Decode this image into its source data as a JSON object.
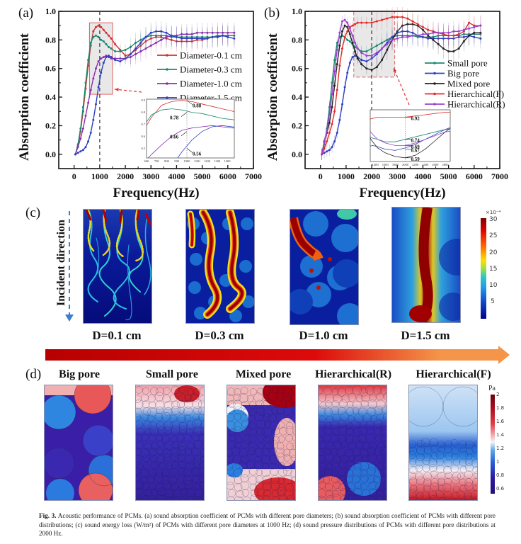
{
  "figure": {
    "caption_label": "Fig. 3.",
    "caption_text": "Acoustic performance of PCMs. (a) sound absorption coefficient of PCMs with different pore diameters; (b) sound absorption coefficient of PCMs with different pore distributions; (c) sound energy loss (W/m²) of PCMs with different pore diameters at 1000 Hz; (d) sound pressure distributions of PCMs with different pore distributions at 2000 Hz."
  },
  "chart_data": [
    {
      "panel": "(a)",
      "type": "line",
      "title": "",
      "xlabel": "Frequency(Hz)",
      "ylabel": "Absorption coefficient",
      "xlim": [
        -600,
        7000
      ],
      "ylim": [
        -0.1,
        1.0
      ],
      "xticks": [
        "0",
        "1000",
        "2000",
        "3000",
        "4000",
        "5000",
        "6000",
        "7000"
      ],
      "yticks": [
        "0.0",
        "0.2",
        "0.4",
        "0.6",
        "0.8",
        "1.0"
      ],
      "grid": false,
      "legend_position": "center-right",
      "reference_line_x": 1000,
      "highlight_box": {
        "x": [
          600,
          1500
        ],
        "y": [
          0.42,
          0.92
        ]
      },
      "x": [
        50,
        150,
        250,
        350,
        450,
        550,
        650,
        750,
        850,
        950,
        1050,
        1150,
        1250,
        1350,
        1450,
        1600,
        1800,
        2000,
        2200,
        2400,
        2600,
        2800,
        3000,
        3200,
        3400,
        3600,
        3800,
        4000,
        4200,
        4400,
        4600,
        4800,
        5000,
        5200,
        5400,
        5600,
        5800,
        6000,
        6250
      ],
      "series": [
        {
          "name": "Diameter-0.1 cm",
          "color": "#d23030",
          "values": [
            0.0,
            0.06,
            0.16,
            0.3,
            0.46,
            0.62,
            0.76,
            0.86,
            0.89,
            0.9,
            0.89,
            0.87,
            0.85,
            0.83,
            0.81,
            0.77,
            0.73,
            0.69,
            0.7,
            0.73,
            0.76,
            0.79,
            0.81,
            0.82,
            0.82,
            0.81,
            0.8,
            0.79,
            0.79,
            0.79,
            0.79,
            0.8,
            0.8,
            0.81,
            0.82,
            0.82,
            0.83,
            0.83,
            0.83
          ]
        },
        {
          "name": "Diameter-0.3 cm",
          "color": "#1a8a6e",
          "values": [
            0.0,
            0.07,
            0.18,
            0.33,
            0.5,
            0.66,
            0.78,
            0.82,
            0.83,
            0.82,
            0.8,
            0.79,
            0.77,
            0.75,
            0.74,
            0.72,
            0.72,
            0.73,
            0.75,
            0.78,
            0.8,
            0.82,
            0.83,
            0.83,
            0.83,
            0.83,
            0.82,
            0.82,
            0.82,
            0.82,
            0.82,
            0.82,
            0.82,
            0.82,
            0.82,
            0.83,
            0.83,
            0.83,
            0.83
          ]
        },
        {
          "name": "Diameter-1.0 cm",
          "color": "#8a2fb0",
          "values": [
            0.0,
            0.05,
            0.11,
            0.18,
            0.27,
            0.36,
            0.45,
            0.53,
            0.6,
            0.65,
            0.67,
            0.68,
            0.69,
            0.68,
            0.67,
            0.67,
            0.67,
            0.67,
            0.68,
            0.7,
            0.72,
            0.74,
            0.76,
            0.78,
            0.8,
            0.82,
            0.83,
            0.83,
            0.84,
            0.84,
            0.84,
            0.85,
            0.85,
            0.85,
            0.85,
            0.85,
            0.85,
            0.85,
            0.85
          ]
        },
        {
          "name": "Diameter-1.5 cm",
          "color": "#2e3fc0",
          "values": [
            0.0,
            0.01,
            0.02,
            0.03,
            0.05,
            0.09,
            0.15,
            0.24,
            0.35,
            0.47,
            0.57,
            0.64,
            0.68,
            0.69,
            0.68,
            0.66,
            0.65,
            0.67,
            0.7,
            0.74,
            0.78,
            0.82,
            0.85,
            0.86,
            0.86,
            0.85,
            0.83,
            0.82,
            0.81,
            0.81,
            0.81,
            0.81,
            0.81,
            0.81,
            0.82,
            0.82,
            0.83,
            0.82,
            0.81
          ]
        }
      ],
      "inset": {
        "xticks": [
          "600",
          "700",
          "800",
          "900",
          "1000",
          "1100",
          "1200",
          "1300",
          "1400"
        ],
        "yticks": [
          "0.5",
          "0.6",
          "0.7",
          "0.8",
          "0.9"
        ],
        "xlim": [
          600,
          1470
        ],
        "ylim": [
          0.42,
          0.91
        ],
        "annotations": [
          {
            "text": "0.88",
            "x": 1000,
            "y": 0.9
          },
          {
            "text": "0.78",
            "x": 1000,
            "y": 0.8
          },
          {
            "text": "0.66",
            "x": 1000,
            "y": 0.64
          },
          {
            "text": "0.56",
            "x": 1000,
            "y": 0.5
          }
        ]
      }
    },
    {
      "panel": "(b)",
      "type": "line",
      "title": "",
      "xlabel": "Frequency(Hz)",
      "ylabel": "Absorption coefficient",
      "xlim": [
        -600,
        7000
      ],
      "ylim": [
        -0.1,
        1.0
      ],
      "xticks": [
        "0",
        "1000",
        "2000",
        "3000",
        "4000",
        "5000",
        "6000",
        "7000"
      ],
      "yticks": [
        "0.0",
        "0.2",
        "0.4",
        "0.6",
        "0.8",
        "1.0"
      ],
      "grid": false,
      "legend_position": "center-right",
      "reference_line_x": 2000,
      "highlight_box": {
        "x": [
          1300,
          2900
        ],
        "y": [
          0.54,
          1.0
        ]
      },
      "x": [
        50,
        150,
        250,
        350,
        450,
        550,
        650,
        750,
        850,
        950,
        1050,
        1150,
        1250,
        1350,
        1450,
        1600,
        1800,
        2000,
        2200,
        2400,
        2600,
        2800,
        3000,
        3200,
        3400,
        3600,
        3800,
        4000,
        4200,
        4400,
        4600,
        4800,
        5000,
        5200,
        5400,
        5600,
        5800,
        6000,
        6250
      ],
      "series": [
        {
          "name": "Small pore",
          "color": "#1a8a6e",
          "values": [
            0.0,
            0.07,
            0.18,
            0.33,
            0.5,
            0.66,
            0.78,
            0.82,
            0.83,
            0.82,
            0.8,
            0.79,
            0.77,
            0.75,
            0.74,
            0.72,
            0.72,
            0.74,
            0.76,
            0.78,
            0.8,
            0.82,
            0.83,
            0.83,
            0.83,
            0.83,
            0.82,
            0.82,
            0.82,
            0.82,
            0.83,
            0.83,
            0.83,
            0.83,
            0.83,
            0.84,
            0.84,
            0.84,
            0.84
          ]
        },
        {
          "name": "Big pore",
          "color": "#2e3fc0",
          "values": [
            0.0,
            0.01,
            0.02,
            0.03,
            0.05,
            0.09,
            0.15,
            0.24,
            0.35,
            0.47,
            0.57,
            0.64,
            0.68,
            0.69,
            0.68,
            0.66,
            0.65,
            0.67,
            0.7,
            0.74,
            0.78,
            0.82,
            0.85,
            0.86,
            0.86,
            0.85,
            0.83,
            0.82,
            0.81,
            0.81,
            0.81,
            0.81,
            0.81,
            0.81,
            0.82,
            0.82,
            0.83,
            0.82,
            0.81
          ]
        },
        {
          "name": "Mixed pore",
          "color": "#222222",
          "values": [
            0.0,
            0.09,
            0.15,
            0.22,
            0.33,
            0.48,
            0.63,
            0.76,
            0.86,
            0.9,
            0.89,
            0.84,
            0.78,
            0.72,
            0.67,
            0.63,
            0.6,
            0.59,
            0.61,
            0.66,
            0.73,
            0.8,
            0.86,
            0.9,
            0.91,
            0.91,
            0.9,
            0.87,
            0.83,
            0.8,
            0.77,
            0.74,
            0.72,
            0.72,
            0.74,
            0.79,
            0.83,
            0.85,
            0.85
          ]
        },
        {
          "name": "Hierarchical(F)",
          "color": "#e02a2a",
          "values": [
            0.0,
            0.04,
            0.09,
            0.15,
            0.21,
            0.3,
            0.45,
            0.62,
            0.74,
            0.82,
            0.86,
            0.89,
            0.9,
            0.91,
            0.92,
            0.92,
            0.92,
            0.92,
            0.93,
            0.94,
            0.95,
            0.96,
            0.96,
            0.96,
            0.95,
            0.93,
            0.91,
            0.89,
            0.87,
            0.86,
            0.85,
            0.84,
            0.83,
            0.83,
            0.84,
            0.86,
            0.92,
            0.9,
            0.9
          ]
        },
        {
          "name": "Hierarchical(R)",
          "color": "#9a3fd0",
          "values": [
            0.0,
            0.08,
            0.16,
            0.28,
            0.42,
            0.58,
            0.73,
            0.85,
            0.93,
            0.94,
            0.92,
            0.88,
            0.83,
            0.78,
            0.74,
            0.71,
            0.69,
            0.69,
            0.71,
            0.74,
            0.77,
            0.8,
            0.81,
            0.82,
            0.82,
            0.83,
            0.83,
            0.84,
            0.84,
            0.85,
            0.85,
            0.85,
            0.85,
            0.86,
            0.86,
            0.87,
            0.88,
            0.89,
            0.9
          ]
        }
      ],
      "inset": {
        "xticks": [
          "1400",
          "1600",
          "1800",
          "2000",
          "2200",
          "2400",
          "2600",
          "2800"
        ],
        "xlim": [
          1300,
          2900
        ],
        "ylim": [
          0.56,
          0.98
        ],
        "annotations": [
          {
            "text": "0.92",
            "x": 2000,
            "y": 0.92
          },
          {
            "text": "0.74",
            "x": 2000,
            "y": 0.74
          },
          {
            "text": "0.69",
            "x": 2000,
            "y": 0.69
          },
          {
            "text": "0.67",
            "x": 2000,
            "y": 0.66
          },
          {
            "text": "0.59",
            "x": 2000,
            "y": 0.59
          }
        ]
      }
    }
  ],
  "panel_c": {
    "label": "(c)",
    "direction_label": "Incident direction",
    "maps": [
      {
        "caption": "D=0.1 cm"
      },
      {
        "caption": "D=0.3 cm"
      },
      {
        "caption": "D=1.0 cm"
      },
      {
        "caption": "D=1.5 cm"
      }
    ],
    "colorbar": {
      "unit": "×10⁻⁴",
      "ticks": [
        "30",
        "25",
        "20",
        "15",
        "10",
        "5"
      ]
    }
  },
  "panel_d": {
    "label": "(d)",
    "maps": [
      {
        "title": "Big pore"
      },
      {
        "title": "Small pore"
      },
      {
        "title": "Mixed pore"
      },
      {
        "title": "Hierarchical(R)"
      },
      {
        "title": "Hierarchical(F)"
      }
    ],
    "colorbar": {
      "unit": "Pa",
      "ticks": [
        "2",
        "1.8",
        "1.6",
        "1.4",
        "1.2",
        "1",
        "0.8",
        "0.6"
      ]
    }
  },
  "colors": {
    "arrow_start": "#b80000",
    "arrow_mid": "#dd0a0a",
    "arrow_end": "#f4954a",
    "jet_low": "#00008f",
    "jet_high": "#7f0000",
    "pressure_low": "#2a1a8a",
    "pressure_high": "#7a0018"
  }
}
